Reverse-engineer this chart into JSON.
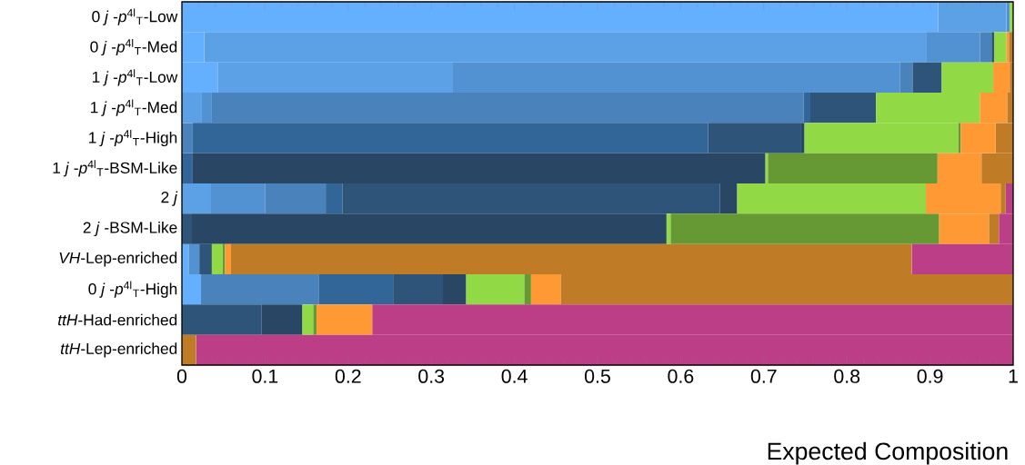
{
  "chart_data": {
    "type": "bar",
    "orientation": "horizontal",
    "stacked": true,
    "xlabel": "Expected Composition",
    "categories": [
      "0 *j* -*p*$^{4l}$$_{T}$-Low",
      "0 *j* -*p*$^{4l}$$_{T}$-Med",
      "1 *j* -*p*$^{4l}$$_{T}$-Low",
      "1 *j* -*p*$^{4l}$$_{T}$-Med",
      "1 *j* -*p*$^{4l}$$_{T}$-High",
      "1 *j* -*p*$^{4l}$$_{T}$-BSM-Like",
      "2 *j*",
      "2 *j* -BSM-Like",
      "*VH*-Lep-enriched",
      "0 *j* -*p*$^{4l}$$_{T}$-High",
      "*ttH*-Had-enriched",
      "*ttH*-Lep-enriched"
    ],
    "series": [
      {
        "color": "#64b0ff",
        "values": [
          0.91,
          0.027,
          0.043,
          null,
          null,
          null,
          null,
          null,
          0.008,
          0.023,
          null,
          null
        ]
      },
      {
        "color": "#5ca0e6",
        "values": [
          0.082,
          0.869,
          0.283,
          0.024,
          null,
          null,
          0.035,
          null,
          null,
          null,
          null,
          null
        ]
      },
      {
        "color": "#5392d2",
        "values": [
          0.004,
          0.064,
          0.538,
          0.012,
          null,
          null,
          0.065,
          null,
          0.013,
          null,
          null,
          null
        ]
      },
      {
        "color": "#4a82bc",
        "values": [
          null,
          0.014,
          0.015,
          0.712,
          0.013,
          null,
          0.073,
          null,
          null,
          0.142,
          null,
          null
        ]
      },
      {
        "color": "#326598",
        "values": [
          null,
          null,
          null,
          0.008,
          0.62,
          0.013,
          0.02,
          null,
          null,
          0.089,
          null,
          null
        ]
      },
      {
        "color": "#2e5479",
        "values": [
          null,
          0.003,
          0.035,
          0.079,
          0.112,
          null,
          0.454,
          0.011,
          0.015,
          0.06,
          0.096,
          null
        ]
      },
      {
        "color": "#294764",
        "values": [
          null,
          null,
          null,
          null,
          0.004,
          0.689,
          0.021,
          0.572,
          null,
          0.028,
          0.049,
          null
        ]
      },
      {
        "color": "#92d946",
        "values": [
          0.004,
          0.015,
          0.062,
          0.125,
          0.185,
          0.003,
          0.227,
          0.005,
          0.013,
          0.07,
          0.013,
          null
        ]
      },
      {
        "color": "#669933",
        "values": [
          null,
          null,
          null,
          null,
          0.003,
          0.204,
          null,
          0.323,
          0.003,
          0.008,
          0.004,
          null
        ]
      },
      {
        "color": "#ff9933",
        "values": [
          null,
          0.003,
          0.02,
          0.033,
          0.042,
          0.053,
          0.09,
          0.06,
          0.007,
          0.036,
          0.067,
          null
        ]
      },
      {
        "color": "#bf7b25",
        "values": [
          null,
          0.005,
          0.004,
          0.007,
          0.021,
          0.038,
          0.006,
          0.012,
          0.819,
          0.544,
          null,
          0.017
        ]
      },
      {
        "color": "#bc3e86",
        "values": [
          null,
          null,
          null,
          null,
          null,
          null,
          0.009,
          0.017,
          0.122,
          null,
          0.771,
          0.983
        ]
      }
    ],
    "xlim": [
      0,
      1
    ],
    "xticks": [
      0,
      0.1,
      0.2,
      0.3,
      0.4,
      0.5,
      0.6,
      0.7,
      0.8,
      0.9,
      1
    ]
  }
}
